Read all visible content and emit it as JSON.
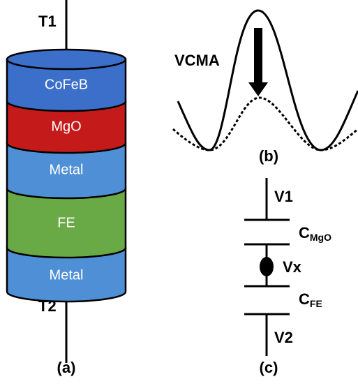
{
  "stack": {
    "terminal_top": "T1",
    "terminal_bottom": "T2",
    "layers": [
      "CoFeB",
      "MgO",
      "Metal",
      "FE",
      "Metal"
    ],
    "caption": "(a)"
  },
  "waveform": {
    "label": "VCMA",
    "caption": "(b)"
  },
  "circuit": {
    "v1": "V1",
    "c_mgo": "C",
    "c_mgo_sub": "MgO",
    "vx": "Vx",
    "c_fe": "C",
    "c_fe_sub": "FE",
    "v2": "V2",
    "caption": "(c)"
  }
}
